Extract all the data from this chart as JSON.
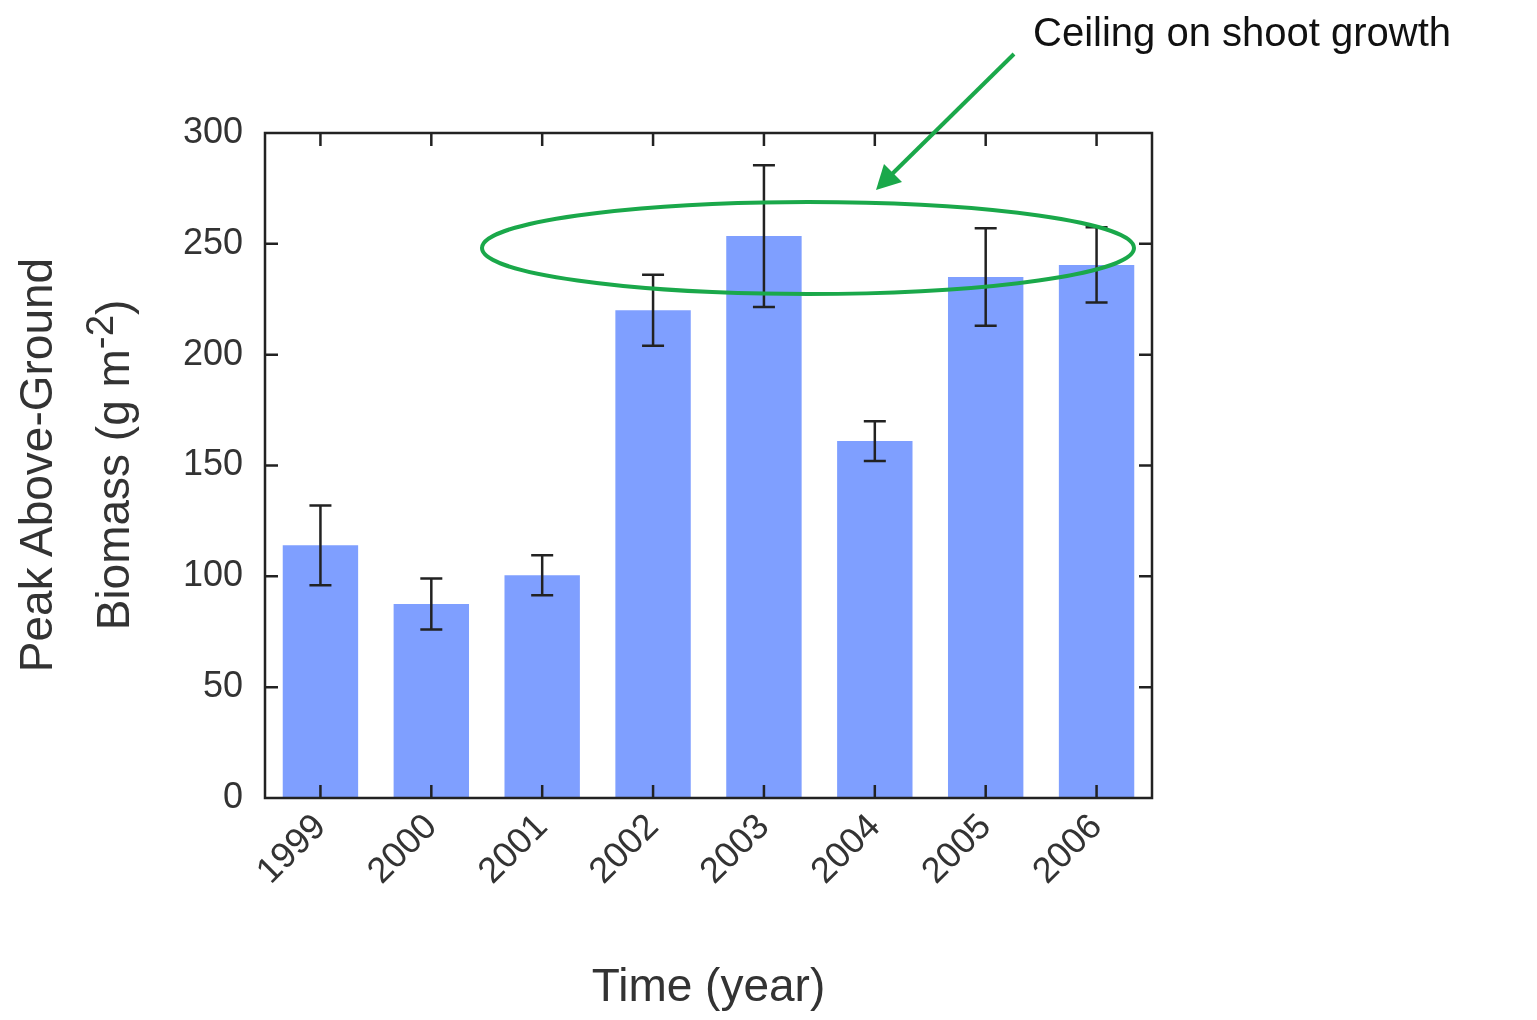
{
  "chart_data": {
    "type": "bar",
    "xlabel": "Time (year)",
    "ylabel": "Peak Above-Ground Biomass (g m$^{-2}$)",
    "categories": [
      "1999",
      "2000",
      "2001",
      "2002",
      "2003",
      "2004",
      "2005",
      "2006"
    ],
    "values": [
      114,
      87.5,
      100.5,
      220,
      253.5,
      161,
      235,
      240.5
    ],
    "errors": [
      18,
      11.5,
      9,
      16,
      32,
      9,
      22,
      17
    ],
    "color": "#7f9fff",
    "ylim": [
      0,
      300
    ],
    "yticks": [
      0,
      50,
      100,
      150,
      200,
      250,
      300
    ],
    "annotations": [
      "Ceiling on shoot growth"
    ]
  }
}
